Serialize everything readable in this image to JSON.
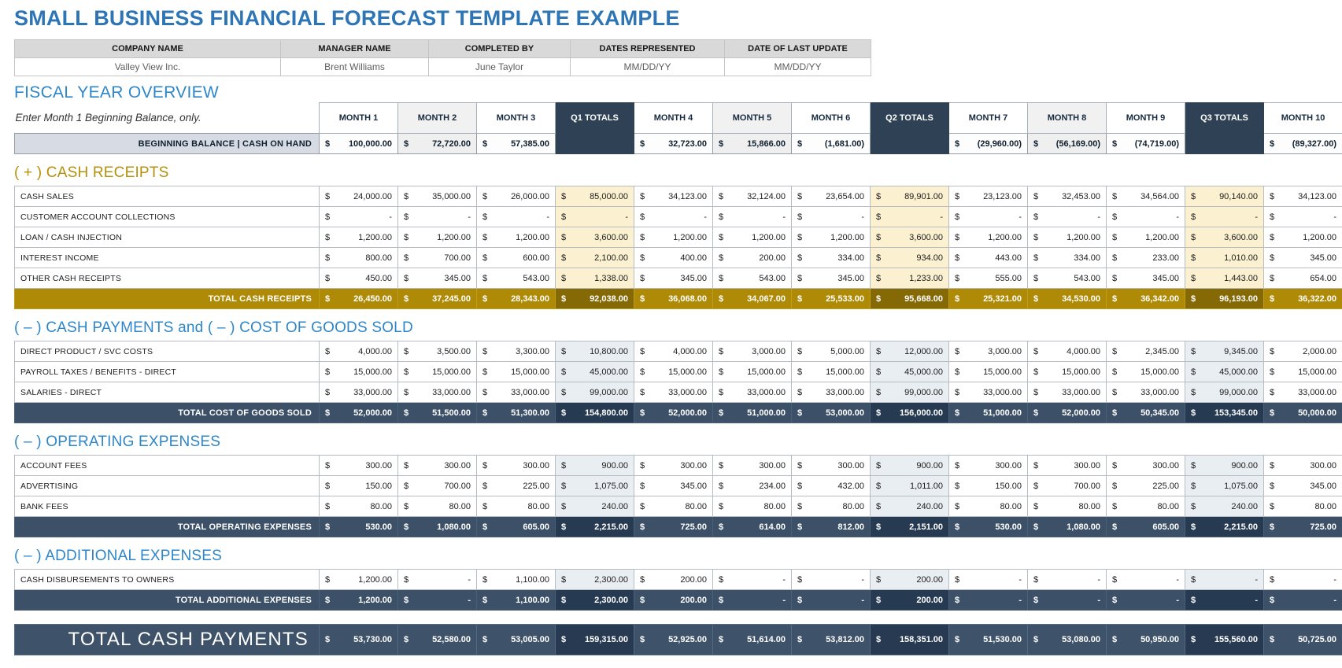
{
  "title": "SMALL BUSINESS FINANCIAL FORECAST TEMPLATE EXAMPLE",
  "info_table": {
    "headers": [
      "COMPANY NAME",
      "MANAGER NAME",
      "COMPLETED BY",
      "DATES REPRESENTED",
      "DATE OF LAST UPDATE"
    ],
    "values": [
      "Valley View Inc.",
      "Brent Williams",
      "June Taylor",
      "MM/DD/YY",
      "MM/DD/YY"
    ]
  },
  "fiscal": {
    "heading": "FISCAL YEAR OVERVIEW",
    "note": "Enter Month 1 Beginning Balance, only.",
    "columns": [
      "MONTH 1",
      "MONTH 2",
      "MONTH 3",
      "Q1 TOTALS",
      "MONTH 4",
      "MONTH 5",
      "MONTH 6",
      "Q2 TOTALS",
      "MONTH 7",
      "MONTH 8",
      "MONTH 9",
      "Q3 TOTALS",
      "MONTH 10"
    ],
    "beginning_balance": {
      "label": "BEGINNING BALANCE | CASH ON HAND",
      "values": [
        "100,000.00",
        "72,720.00",
        "57,385.00",
        "",
        "32,723.00",
        "15,866.00",
        "(1,681.00)",
        "",
        "(29,960.00)",
        "(56,169.00)",
        "(74,719.00)",
        "",
        "(89,327.00)"
      ]
    }
  },
  "sections": [
    {
      "heading": "( + )  CASH RECEIPTS",
      "rows": [
        {
          "label": "CASH SALES",
          "values": [
            "24,000.00",
            "35,000.00",
            "26,000.00",
            "85,000.00",
            "34,123.00",
            "32,124.00",
            "23,654.00",
            "89,901.00",
            "23,123.00",
            "32,453.00",
            "34,564.00",
            "90,140.00",
            "34,123.00"
          ]
        },
        {
          "label": "CUSTOMER ACCOUNT COLLECTIONS",
          "values": [
            "-",
            "-",
            "-",
            "-",
            "-",
            "-",
            "-",
            "-",
            "-",
            "-",
            "-",
            "-",
            "-"
          ]
        },
        {
          "label": "LOAN / CASH INJECTION",
          "values": [
            "1,200.00",
            "1,200.00",
            "1,200.00",
            "3,600.00",
            "1,200.00",
            "1,200.00",
            "1,200.00",
            "3,600.00",
            "1,200.00",
            "1,200.00",
            "1,200.00",
            "3,600.00",
            "1,200.00"
          ]
        },
        {
          "label": "INTEREST INCOME",
          "values": [
            "800.00",
            "700.00",
            "600.00",
            "2,100.00",
            "400.00",
            "200.00",
            "334.00",
            "934.00",
            "443.00",
            "334.00",
            "233.00",
            "1,010.00",
            "345.00"
          ]
        },
        {
          "label": "OTHER CASH RECEIPTS",
          "values": [
            "450.00",
            "345.00",
            "543.00",
            "1,338.00",
            "345.00",
            "543.00",
            "345.00",
            "1,233.00",
            "555.00",
            "543.00",
            "345.00",
            "1,443.00",
            "654.00"
          ]
        }
      ],
      "total": {
        "label": "TOTAL CASH RECEIPTS",
        "values": [
          "26,450.00",
          "37,245.00",
          "28,343.00",
          "92,038.00",
          "36,068.00",
          "34,067.00",
          "25,533.00",
          "95,668.00",
          "25,321.00",
          "34,530.00",
          "36,342.00",
          "96,193.00",
          "36,322.00"
        ]
      }
    },
    {
      "heading": "( – )  CASH PAYMENTS and ( – )  COST OF GOODS SOLD",
      "rows": [
        {
          "label": "DIRECT PRODUCT / SVC COSTS",
          "values": [
            "4,000.00",
            "3,500.00",
            "3,300.00",
            "10,800.00",
            "4,000.00",
            "3,000.00",
            "5,000.00",
            "12,000.00",
            "3,000.00",
            "4,000.00",
            "2,345.00",
            "9,345.00",
            "2,000.00"
          ]
        },
        {
          "label": "PAYROLL TAXES / BENEFITS - DIRECT",
          "values": [
            "15,000.00",
            "15,000.00",
            "15,000.00",
            "45,000.00",
            "15,000.00",
            "15,000.00",
            "15,000.00",
            "45,000.00",
            "15,000.00",
            "15,000.00",
            "15,000.00",
            "45,000.00",
            "15,000.00"
          ]
        },
        {
          "label": "SALARIES - DIRECT",
          "values": [
            "33,000.00",
            "33,000.00",
            "33,000.00",
            "99,000.00",
            "33,000.00",
            "33,000.00",
            "33,000.00",
            "99,000.00",
            "33,000.00",
            "33,000.00",
            "33,000.00",
            "99,000.00",
            "33,000.00"
          ]
        }
      ],
      "total": {
        "label": "TOTAL COST OF GOODS SOLD",
        "values": [
          "52,000.00",
          "51,500.00",
          "51,300.00",
          "154,800.00",
          "52,000.00",
          "51,000.00",
          "53,000.00",
          "156,000.00",
          "51,000.00",
          "52,000.00",
          "50,345.00",
          "153,345.00",
          "50,000.00"
        ]
      }
    },
    {
      "heading": "( – )  OPERATING EXPENSES",
      "rows": [
        {
          "label": "ACCOUNT FEES",
          "values": [
            "300.00",
            "300.00",
            "300.00",
            "900.00",
            "300.00",
            "300.00",
            "300.00",
            "900.00",
            "300.00",
            "300.00",
            "300.00",
            "900.00",
            "300.00"
          ]
        },
        {
          "label": "ADVERTISING",
          "values": [
            "150.00",
            "700.00",
            "225.00",
            "1,075.00",
            "345.00",
            "234.00",
            "432.00",
            "1,011.00",
            "150.00",
            "700.00",
            "225.00",
            "1,075.00",
            "345.00"
          ]
        },
        {
          "label": "BANK FEES",
          "values": [
            "80.00",
            "80.00",
            "80.00",
            "240.00",
            "80.00",
            "80.00",
            "80.00",
            "240.00",
            "80.00",
            "80.00",
            "80.00",
            "240.00",
            "80.00"
          ]
        }
      ],
      "total": {
        "label": "TOTAL OPERATING EXPENSES",
        "values": [
          "530.00",
          "1,080.00",
          "605.00",
          "2,215.00",
          "725.00",
          "614.00",
          "812.00",
          "2,151.00",
          "530.00",
          "1,080.00",
          "605.00",
          "2,215.00",
          "725.00"
        ]
      }
    },
    {
      "heading": "( – )  ADDITIONAL EXPENSES",
      "rows": [
        {
          "label": "CASH DISBURSEMENTS TO OWNERS",
          "values": [
            "1,200.00",
            "-",
            "1,100.00",
            "2,300.00",
            "200.00",
            "-",
            "-",
            "200.00",
            "-",
            "-",
            "-",
            "-",
            "-"
          ]
        }
      ],
      "total": {
        "label": "TOTAL ADDITIONAL EXPENSES",
        "values": [
          "1,200.00",
          "-",
          "1,100.00",
          "2,300.00",
          "200.00",
          "-",
          "-",
          "200.00",
          "-",
          "-",
          "-",
          "-",
          "-"
        ]
      }
    }
  ],
  "grand_total": {
    "label": "TOTAL CASH PAYMENTS",
    "values": [
      "53,730.00",
      "52,580.00",
      "53,005.00",
      "159,315.00",
      "52,925.00",
      "51,614.00",
      "53,812.00",
      "158,351.00",
      "51,530.00",
      "53,080.00",
      "50,950.00",
      "155,560.00",
      "50,725.00"
    ]
  },
  "currency_symbol": "$",
  "colors": {
    "title_blue": "#2E75B6",
    "heading_blue": "#2E86C8",
    "heading_gold": "#B5900C",
    "gold_total_row": "#AF8A06",
    "gold_total_quarter": "#846905",
    "cream_quarter_cell": "#FBF0D0",
    "navy_header": "#2F4154",
    "navy_total_row": "#3C5068",
    "navy_total_quarter": "#263A52",
    "blue_quarter_cell": "#E9EEF3",
    "info_header_gray": "#D9D9D9",
    "balance_label_gray": "#D7DCE4"
  }
}
